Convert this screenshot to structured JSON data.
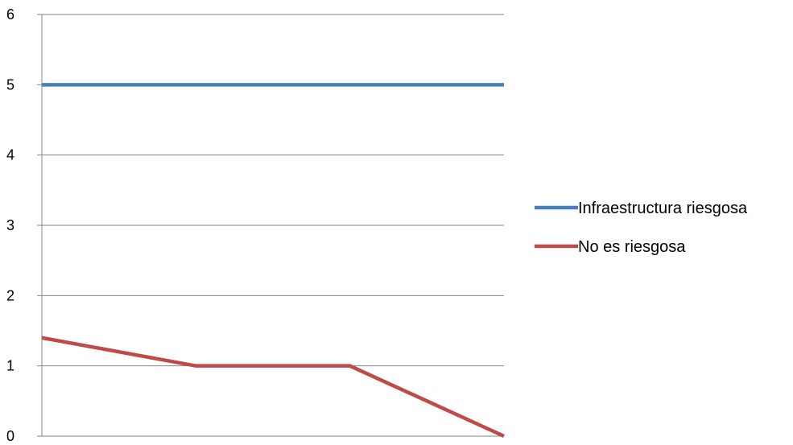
{
  "chart_data": {
    "type": "line",
    "title": "",
    "xlabel": "",
    "ylabel": "",
    "x": [
      1,
      2,
      3,
      4
    ],
    "ylim": [
      0,
      6
    ],
    "yticks": [
      0,
      1,
      2,
      3,
      4,
      5,
      6
    ],
    "grid": true,
    "legend_position": "right",
    "series": [
      {
        "name": "Infraestructura riesgosa",
        "color": "#4a7ebb",
        "values": [
          5,
          5,
          5,
          5
        ]
      },
      {
        "name": "No es riesgosa",
        "color": "#be4b48",
        "values": [
          1.4,
          1,
          1,
          0
        ]
      }
    ]
  }
}
